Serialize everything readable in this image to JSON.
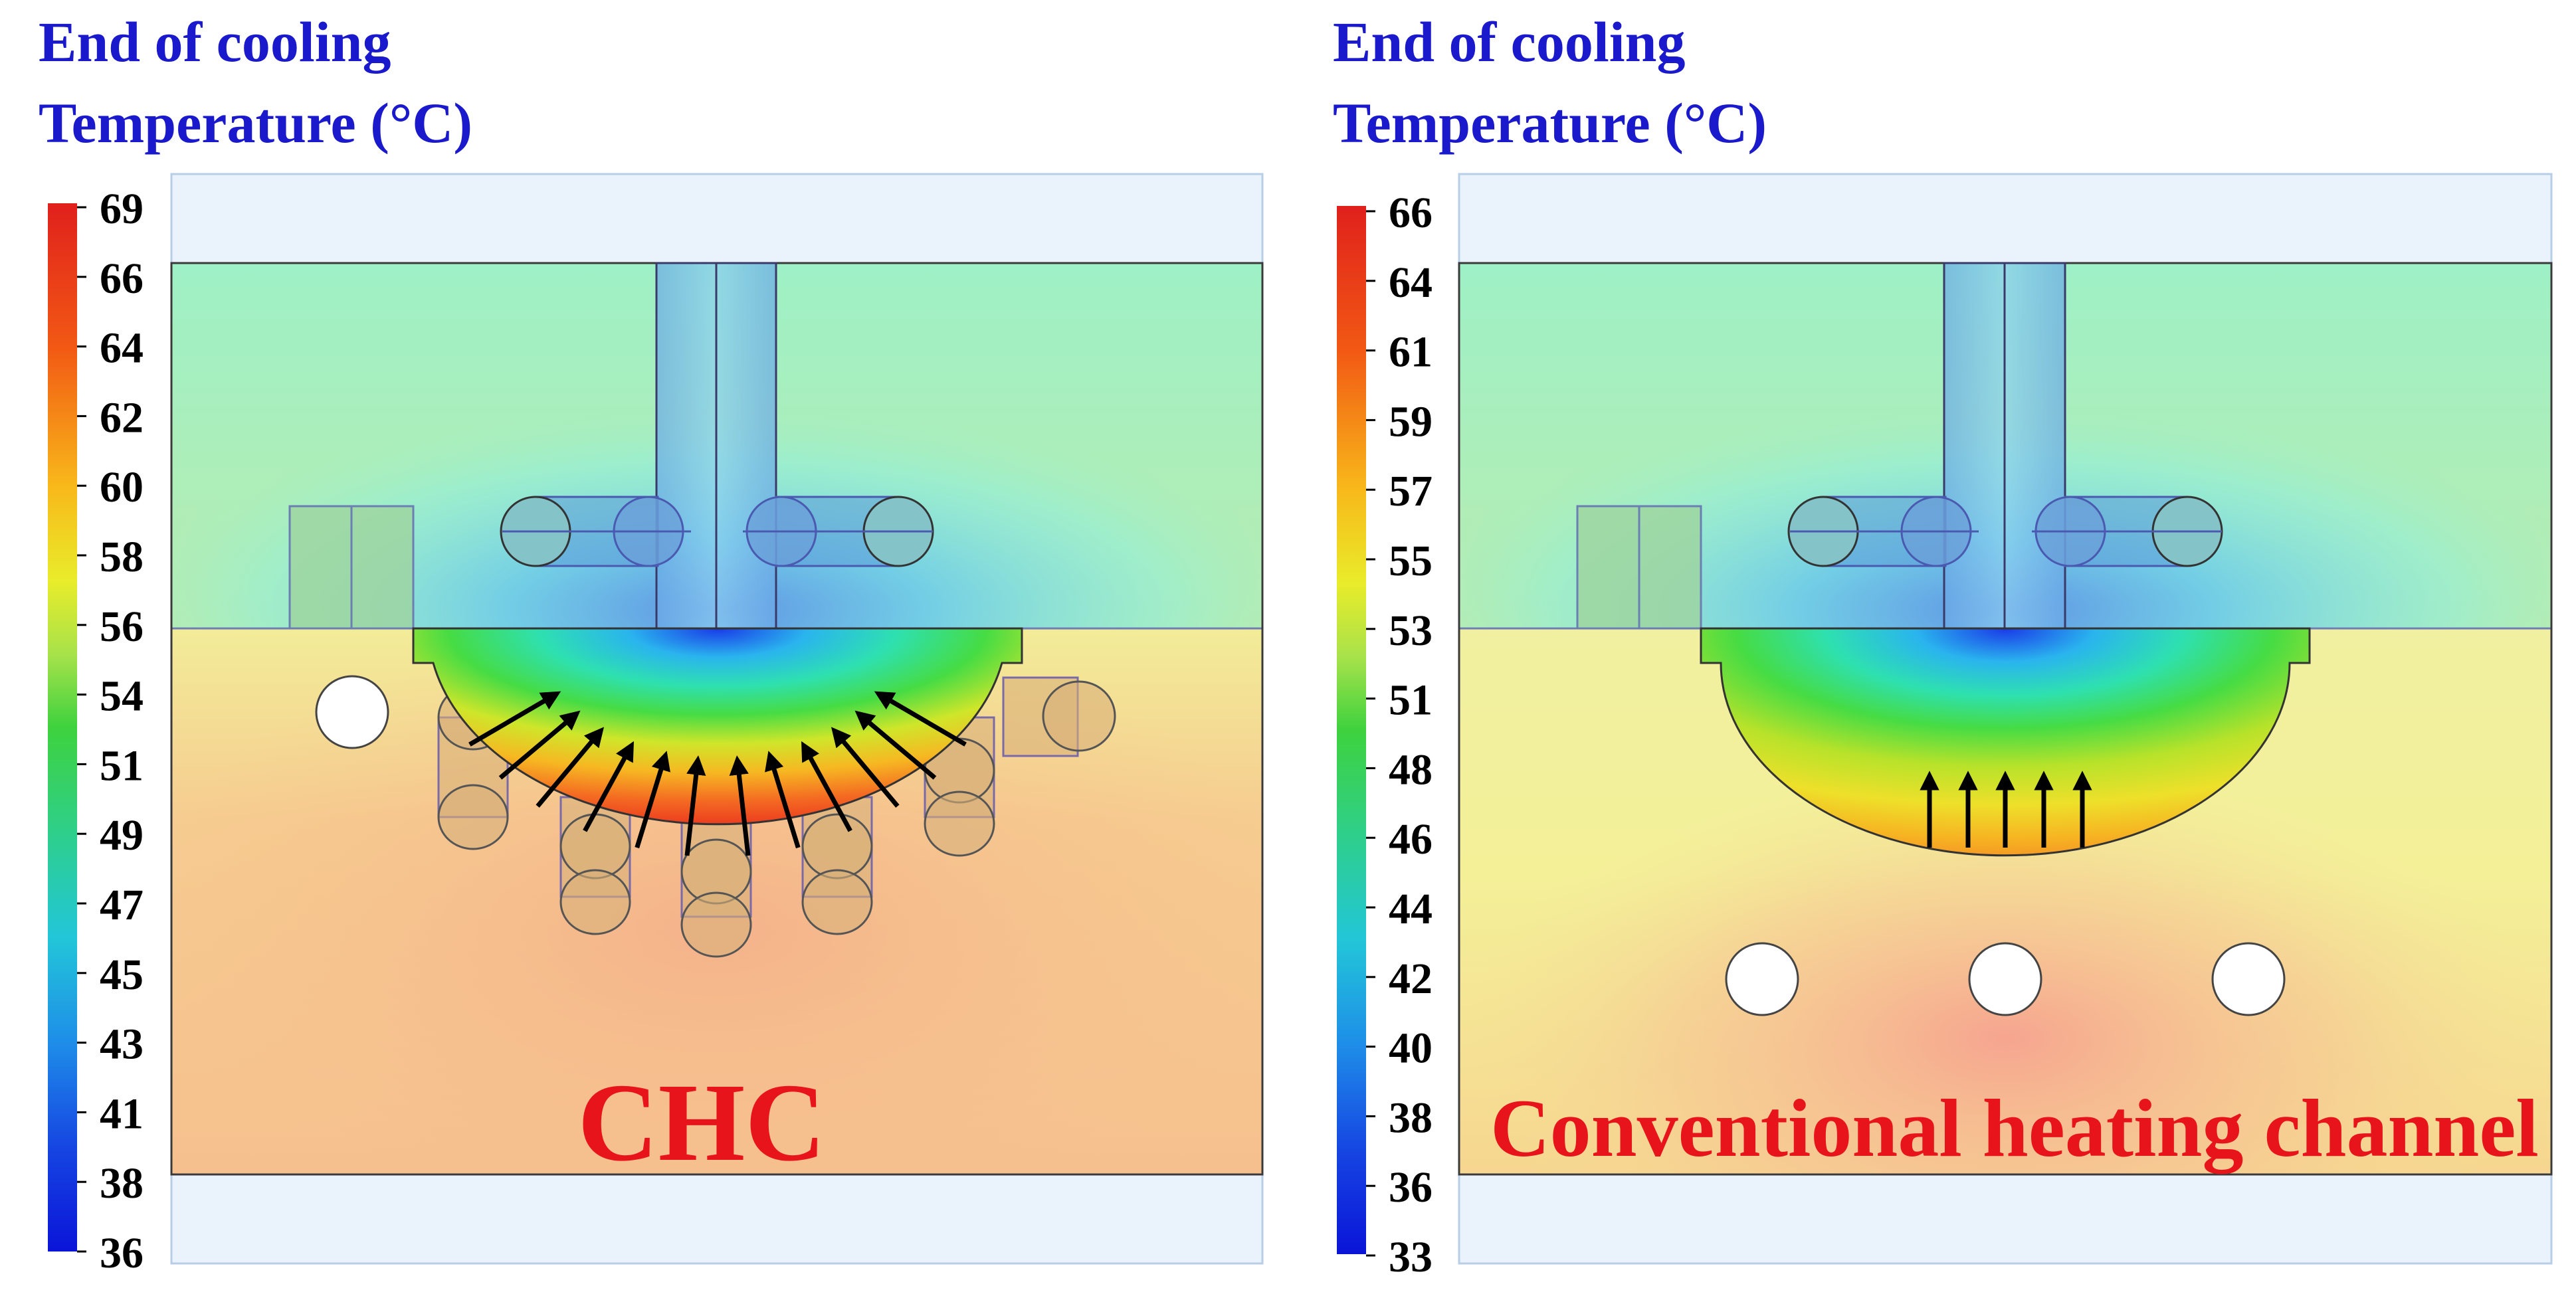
{
  "colors": {
    "title_blue": "#1a1acc",
    "label_red": "#e8141c",
    "outer_band": "#eaf3fb",
    "scale_top": "#e0201c",
    "scale_bottom": "#0a14d8",
    "channel_hole": "#ffffff",
    "arrow": "#000000"
  },
  "panels": [
    {
      "title_line1": "End of cooling",
      "title_line2": "Temperature (°C)",
      "scale_ticks": [
        "69",
        "66",
        "64",
        "62",
        "60",
        "58",
        "56",
        "54",
        "51",
        "49",
        "47",
        "45",
        "43",
        "41",
        "38",
        "36"
      ],
      "label": "CHC"
    },
    {
      "title_line1": "End of cooling",
      "title_line2": "Temperature (°C)",
      "scale_ticks": [
        "66",
        "64",
        "61",
        "59",
        "57",
        "55",
        "53",
        "51",
        "48",
        "46",
        "44",
        "42",
        "40",
        "38",
        "36",
        "33"
      ],
      "label": "Conventional heating channel"
    }
  ]
}
